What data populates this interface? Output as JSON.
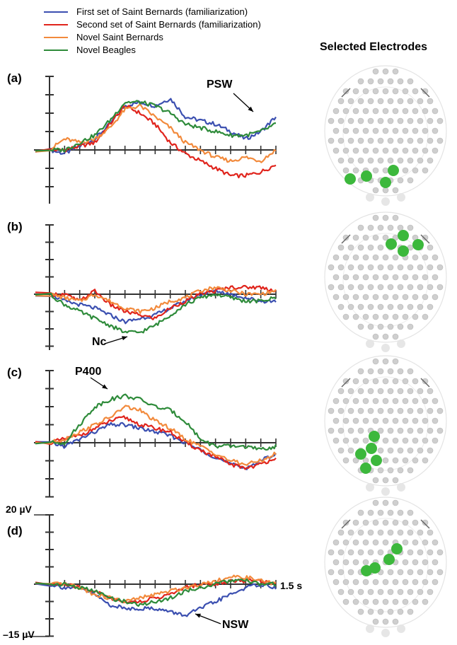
{
  "legend": [
    {
      "name": "First set of Saint Bernards (familiarization)",
      "color": "#3b4fb0"
    },
    {
      "name": "Second set of Saint Bernards (familiarization)",
      "color": "#e0241c"
    },
    {
      "name": "Novel Saint Bernards",
      "color": "#f28a3c"
    },
    {
      "name": "Novel Beagles",
      "color": "#2e8b3a"
    }
  ],
  "right_title": "Selected Electrodes",
  "labels": {
    "y_top": "20 µV",
    "y_bottom": "–15 µV",
    "x_end": "1.5 s"
  },
  "chart_data": [
    {
      "panel": "(a)",
      "type": "line",
      "annotation": "PSW",
      "ylim": [
        -15,
        20
      ],
      "xlim": [
        0,
        1.5
      ],
      "x": [
        0,
        0.1,
        0.2,
        0.3,
        0.4,
        0.5,
        0.6,
        0.7,
        0.8,
        0.9,
        1.0,
        1.1,
        1.2,
        1.3,
        1.4,
        1.5
      ],
      "series": [
        {
          "values": [
            0,
            -1,
            1,
            3,
            7,
            12,
            13,
            12,
            14,
            9,
            8,
            7,
            5,
            3,
            5,
            9
          ]
        },
        {
          "values": [
            0,
            0,
            1,
            2,
            7,
            12,
            10,
            7,
            2,
            -1,
            -3,
            -5,
            -7,
            -7,
            -6,
            -4
          ]
        },
        {
          "values": [
            0,
            3,
            2,
            3,
            6,
            11,
            12,
            9,
            6,
            2,
            0,
            -2,
            -3,
            -2,
            -3,
            0
          ]
        },
        {
          "values": [
            0,
            0,
            2,
            4,
            8,
            13,
            13,
            12,
            10,
            7,
            6,
            5,
            4,
            4,
            5,
            7
          ]
        }
      ]
    },
    {
      "panel": "(b)",
      "type": "line",
      "annotation": "Nc",
      "ylim": [
        -15,
        20
      ],
      "xlim": [
        0,
        1.5
      ],
      "x": [
        0,
        0.1,
        0.2,
        0.3,
        0.4,
        0.5,
        0.6,
        0.7,
        0.8,
        0.9,
        1.0,
        1.1,
        1.2,
        1.3,
        1.4,
        1.5
      ],
      "series": [
        {
          "values": [
            0,
            -2,
            -3,
            -4,
            -6,
            -8,
            -7,
            -6,
            -4,
            -2,
            0,
            1,
            0,
            -1,
            -2,
            -2
          ]
        },
        {
          "values": [
            0,
            0,
            -2,
            1,
            -3,
            -5,
            -6,
            -7,
            -4,
            -2,
            0,
            1,
            2,
            2,
            2,
            1
          ]
        },
        {
          "values": [
            0,
            -1,
            -2,
            0,
            -2,
            -4,
            -5,
            -4,
            -2,
            -1,
            1,
            2,
            1,
            0,
            0,
            1
          ]
        },
        {
          "values": [
            0,
            -3,
            -5,
            -7,
            -9,
            -11,
            -11,
            -9,
            -6,
            -3,
            -1,
            0,
            -1,
            -2,
            -2,
            -1
          ]
        }
      ]
    },
    {
      "panel": "(c)",
      "type": "line",
      "annotation": "P400",
      "ylim": [
        -15,
        20
      ],
      "xlim": [
        0,
        1.5
      ],
      "x": [
        0,
        0.1,
        0.2,
        0.3,
        0.4,
        0.5,
        0.6,
        0.7,
        0.8,
        0.9,
        1.0,
        1.1,
        1.2,
        1.3,
        1.4,
        1.5
      ],
      "series": [
        {
          "values": [
            0,
            -1,
            1,
            3,
            5,
            5,
            4,
            3,
            2,
            0,
            -2,
            -4,
            -6,
            -7,
            -5,
            -3
          ]
        },
        {
          "values": [
            0,
            1,
            2,
            4,
            6,
            7,
            5,
            4,
            3,
            0,
            -2,
            -4,
            -6,
            -7,
            -6,
            -4
          ]
        },
        {
          "values": [
            0,
            1,
            3,
            5,
            7,
            10,
            9,
            6,
            4,
            1,
            -1,
            -3,
            -5,
            -6,
            -5,
            -3
          ]
        },
        {
          "values": [
            0,
            0,
            5,
            10,
            12,
            13,
            12,
            10,
            9,
            6,
            1,
            -1,
            -1,
            -1,
            -2,
            -1
          ]
        }
      ]
    },
    {
      "panel": "(d)",
      "type": "line",
      "annotation": "NSW",
      "ylim": [
        -15,
        20
      ],
      "xlim": [
        0,
        1.5
      ],
      "x": [
        0,
        0.1,
        0.2,
        0.3,
        0.4,
        0.5,
        0.6,
        0.7,
        0.8,
        0.9,
        1.0,
        1.1,
        1.2,
        1.3,
        1.4,
        1.5
      ],
      "series": [
        {
          "values": [
            0,
            -1,
            -1,
            -3,
            -6,
            -7,
            -7,
            -7,
            -8,
            -9,
            -7,
            -5,
            -3,
            -1,
            0,
            -1
          ]
        },
        {
          "values": [
            0,
            0,
            -1,
            -2,
            -4,
            -5,
            -5,
            -4,
            -3,
            -1,
            0,
            0,
            1,
            1,
            1,
            0
          ]
        },
        {
          "values": [
            0,
            0,
            -1,
            -3,
            -4,
            -5,
            -4,
            -3,
            -2,
            -1,
            0,
            1,
            2,
            2,
            1,
            0
          ]
        },
        {
          "values": [
            0,
            0,
            -1,
            -2,
            -4,
            -5,
            -6,
            -5,
            -4,
            -2,
            -1,
            0,
            1,
            1,
            0,
            0
          ]
        }
      ]
    }
  ],
  "electrodes": [
    {
      "panel": "(a)",
      "selected_color": "#3cb83c",
      "selected_count": 4
    },
    {
      "panel": "(b)",
      "selected_color": "#3cb83c",
      "selected_count": 4
    },
    {
      "panel": "(c)",
      "selected_color": "#3cb83c",
      "selected_count": 5
    },
    {
      "panel": "(d)",
      "selected_color": "#3cb83c",
      "selected_count": 4
    }
  ]
}
